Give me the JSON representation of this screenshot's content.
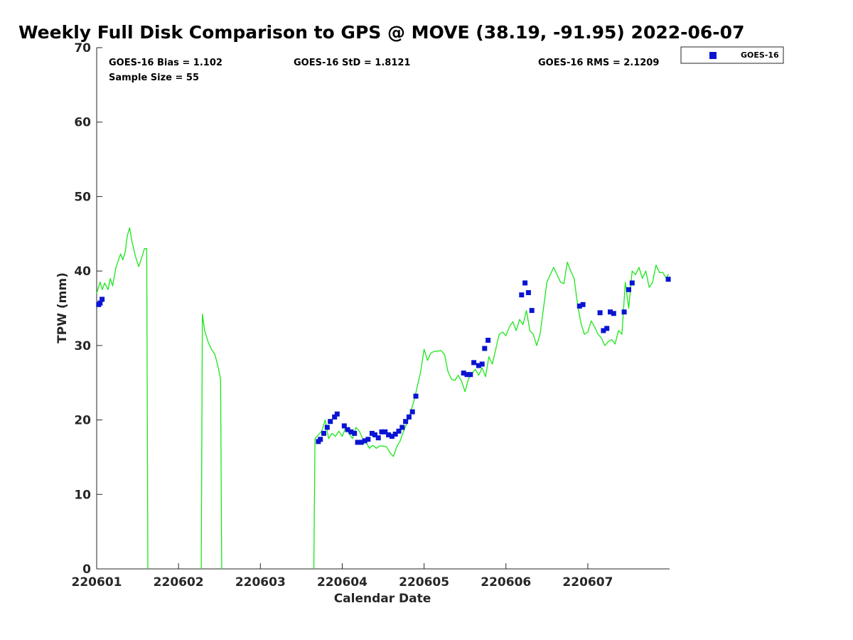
{
  "chart_data": {
    "type": "scatter",
    "title": "Weekly Full Disk Comparison to GPS @ MOVE (38.19, -91.95) 2022-06-07",
    "xlabel": "Calendar Date",
    "ylabel": "TPW (mm)",
    "xlim": [
      "2022-06-01",
      "2022-06-07 23:59"
    ],
    "ylim": [
      0,
      70
    ],
    "y_ticks": [
      0,
      10,
      20,
      30,
      40,
      50,
      60,
      70
    ],
    "x_ticks": [
      "220601",
      "220602",
      "220603",
      "220604",
      "220605",
      "220606",
      "220607"
    ],
    "stats": {
      "bias": "GOES-16 Bias = 1.102",
      "std": "GOES-16 StD = 1.8121",
      "rms": "GOES-16 RMS = 2.1209",
      "sample_size": "Sample Size = 55"
    },
    "legend": {
      "position": "outside-top-right",
      "entries": [
        "GOES-16"
      ]
    },
    "colors": {
      "goes": "#0a14d2",
      "gps": "#1be61b"
    },
    "series": [
      {
        "name": "GOES-16",
        "type": "scatter",
        "points": [
          [
            "2022-06-01 00:35",
            35.5
          ],
          [
            "2022-06-01 01:00",
            35.7
          ],
          [
            "2022-06-01 01:35",
            36.2
          ],
          [
            "2022-06-03 17:00",
            17.1
          ],
          [
            "2022-06-03 17:35",
            17.4
          ],
          [
            "2022-06-03 18:35",
            18.2
          ],
          [
            "2022-06-03 19:35",
            19.0
          ],
          [
            "2022-06-03 20:30",
            19.8
          ],
          [
            "2022-06-03 21:45",
            20.4
          ],
          [
            "2022-06-03 22:30",
            20.8
          ],
          [
            "2022-06-04 00:35",
            19.2
          ],
          [
            "2022-06-04 01:35",
            18.7
          ],
          [
            "2022-06-04 02:35",
            18.4
          ],
          [
            "2022-06-04 03:35",
            18.2
          ],
          [
            "2022-06-04 04:30",
            17.0
          ],
          [
            "2022-06-04 05:35",
            17.0
          ],
          [
            "2022-06-04 06:35",
            17.2
          ],
          [
            "2022-06-04 07:35",
            17.4
          ],
          [
            "2022-06-04 08:45",
            18.2
          ],
          [
            "2022-06-04 09:35",
            18.0
          ],
          [
            "2022-06-04 10:35",
            17.6
          ],
          [
            "2022-06-04 11:35",
            18.4
          ],
          [
            "2022-06-04 12:35",
            18.4
          ],
          [
            "2022-06-04 13:35",
            18.0
          ],
          [
            "2022-06-04 14:35",
            17.8
          ],
          [
            "2022-06-04 15:35",
            18.1
          ],
          [
            "2022-06-04 16:35",
            18.5
          ],
          [
            "2022-06-04 17:35",
            19.0
          ],
          [
            "2022-06-04 18:35",
            19.8
          ],
          [
            "2022-06-04 19:35",
            20.4
          ],
          [
            "2022-06-04 20:35",
            21.1
          ],
          [
            "2022-06-04 21:35",
            23.2
          ],
          [
            "2022-06-05 11:35",
            26.3
          ],
          [
            "2022-06-05 12:35",
            26.1
          ],
          [
            "2022-06-05 13:35",
            26.1
          ],
          [
            "2022-06-05 14:35",
            27.7
          ],
          [
            "2022-06-05 16:00",
            27.3
          ],
          [
            "2022-06-05 17:00",
            27.5
          ],
          [
            "2022-06-05 17:45",
            29.6
          ],
          [
            "2022-06-05 18:45",
            30.7
          ],
          [
            "2022-06-06 04:35",
            36.8
          ],
          [
            "2022-06-06 05:35",
            38.4
          ],
          [
            "2022-06-06 06:35",
            37.1
          ],
          [
            "2022-06-06 07:35",
            34.7
          ],
          [
            "2022-06-06 21:35",
            35.3
          ],
          [
            "2022-06-06 22:35",
            35.5
          ],
          [
            "2022-06-07 03:35",
            34.4
          ],
          [
            "2022-06-07 04:35",
            32.0
          ],
          [
            "2022-06-07 05:35",
            32.3
          ],
          [
            "2022-06-07 06:35",
            34.5
          ],
          [
            "2022-06-07 07:35",
            34.3
          ],
          [
            "2022-06-07 10:40",
            34.5
          ],
          [
            "2022-06-07 12:00",
            37.5
          ],
          [
            "2022-06-07 13:00",
            38.4
          ],
          [
            "2022-06-07 23:35",
            38.9
          ]
        ]
      },
      {
        "type": "line",
        "segments": [
          [
            [
              "2022-06-01 00:00",
              37.0
            ],
            [
              "2022-06-01 01:00",
              38.5
            ],
            [
              "2022-06-01 01:40",
              37.5
            ],
            [
              "2022-06-01 02:20",
              38.4
            ],
            [
              "2022-06-01 03:20",
              37.5
            ],
            [
              "2022-06-01 04:00",
              39.0
            ],
            [
              "2022-06-01 04:40",
              38.0
            ],
            [
              "2022-06-01 05:40",
              40.5
            ],
            [
              "2022-06-01 07:00",
              42.3
            ],
            [
              "2022-06-01 07:40",
              41.5
            ],
            [
              "2022-06-01 08:20",
              42.5
            ],
            [
              "2022-06-01 09:00",
              44.8
            ],
            [
              "2022-06-01 09:40",
              45.8
            ],
            [
              "2022-06-01 10:20",
              44.0
            ],
            [
              "2022-06-01 11:20",
              42.0
            ],
            [
              "2022-06-01 12:20",
              40.6
            ],
            [
              "2022-06-01 13:00",
              41.5
            ],
            [
              "2022-06-01 14:00",
              43.0
            ],
            [
              "2022-06-01 14:40",
              43.0
            ],
            [
              "2022-06-01 15:00",
              0.0
            ]
          ],
          [
            [
              "2022-06-02 06:40",
              0.0
            ],
            [
              "2022-06-02 07:00",
              34.2
            ],
            [
              "2022-06-02 07:40",
              32.0
            ],
            [
              "2022-06-02 08:40",
              30.5
            ],
            [
              "2022-06-02 09:40",
              29.5
            ],
            [
              "2022-06-02 10:40",
              28.8
            ],
            [
              "2022-06-02 11:40",
              27.0
            ],
            [
              "2022-06-02 12:20",
              25.5
            ],
            [
              "2022-06-02 12:40",
              0.0
            ]
          ],
          [
            [
              "2022-06-03 15:40",
              0.0
            ],
            [
              "2022-06-03 16:00",
              17.5
            ],
            [
              "2022-06-03 17:00",
              18.0
            ],
            [
              "2022-06-03 18:00",
              18.5
            ],
            [
              "2022-06-03 19:00",
              20.0
            ],
            [
              "2022-06-03 20:00",
              17.5
            ],
            [
              "2022-06-03 21:00",
              18.2
            ],
            [
              "2022-06-03 22:00",
              17.8
            ],
            [
              "2022-06-03 23:00",
              18.5
            ],
            [
              "2022-06-04 00:00",
              17.8
            ],
            [
              "2022-06-04 01:00",
              19.0
            ],
            [
              "2022-06-04 02:00",
              18.2
            ],
            [
              "2022-06-04 03:00",
              17.5
            ],
            [
              "2022-06-04 04:00",
              19.0
            ],
            [
              "2022-06-04 05:00",
              18.5
            ],
            [
              "2022-06-04 06:00",
              17.5
            ],
            [
              "2022-06-04 07:00",
              17.0
            ],
            [
              "2022-06-04 08:00",
              16.2
            ],
            [
              "2022-06-04 09:00",
              16.6
            ],
            [
              "2022-06-04 10:00",
              16.2
            ],
            [
              "2022-06-04 11:00",
              16.5
            ],
            [
              "2022-06-04 12:00",
              16.5
            ],
            [
              "2022-06-04 13:00",
              16.4
            ],
            [
              "2022-06-04 14:00",
              15.6
            ],
            [
              "2022-06-04 15:00",
              15.1
            ],
            [
              "2022-06-04 16:00",
              16.4
            ],
            [
              "2022-06-04 17:00",
              17.2
            ],
            [
              "2022-06-04 18:00",
              18.5
            ],
            [
              "2022-06-04 19:00",
              19.6
            ],
            [
              "2022-06-04 20:00",
              21.0
            ],
            [
              "2022-06-04 21:00",
              22.5
            ],
            [
              "2022-06-04 22:00",
              24.5
            ],
            [
              "2022-06-04 23:00",
              26.5
            ],
            [
              "2022-06-05 00:00",
              29.5
            ],
            [
              "2022-06-05 01:00",
              28.0
            ],
            [
              "2022-06-05 02:00",
              29.0
            ],
            [
              "2022-06-05 03:00",
              29.2
            ],
            [
              "2022-06-05 05:00",
              29.3
            ],
            [
              "2022-06-05 06:00",
              28.8
            ],
            [
              "2022-06-05 07:00",
              26.5
            ],
            [
              "2022-06-05 08:00",
              25.5
            ],
            [
              "2022-06-05 09:00",
              25.3
            ],
            [
              "2022-06-05 10:00",
              26.0
            ],
            [
              "2022-06-05 11:00",
              25.2
            ],
            [
              "2022-06-05 12:00",
              23.8
            ],
            [
              "2022-06-05 13:00",
              25.5
            ],
            [
              "2022-06-05 14:00",
              26.2
            ],
            [
              "2022-06-05 15:00",
              26.8
            ],
            [
              "2022-06-05 16:00",
              26.0
            ],
            [
              "2022-06-05 17:00",
              27.0
            ],
            [
              "2022-06-05 18:00",
              25.8
            ],
            [
              "2022-06-05 19:00",
              28.5
            ],
            [
              "2022-06-05 20:00",
              27.5
            ],
            [
              "2022-06-05 21:00",
              29.5
            ],
            [
              "2022-06-05 22:00",
              31.5
            ],
            [
              "2022-06-05 23:00",
              31.8
            ],
            [
              "2022-06-06 00:00",
              31.3
            ],
            [
              "2022-06-06 01:00",
              32.5
            ],
            [
              "2022-06-06 02:00",
              33.2
            ],
            [
              "2022-06-06 03:00",
              32.0
            ],
            [
              "2022-06-06 04:00",
              33.5
            ],
            [
              "2022-06-06 05:00",
              32.8
            ],
            [
              "2022-06-06 06:00",
              34.7
            ],
            [
              "2022-06-06 07:00",
              32.0
            ],
            [
              "2022-06-06 08:00",
              31.5
            ],
            [
              "2022-06-06 09:00",
              30.0
            ],
            [
              "2022-06-06 10:00",
              31.5
            ],
            [
              "2022-06-06 11:00",
              35.0
            ],
            [
              "2022-06-06 12:00",
              38.5
            ],
            [
              "2022-06-06 13:00",
              39.5
            ],
            [
              "2022-06-06 14:00",
              40.5
            ],
            [
              "2022-06-06 15:00",
              39.5
            ],
            [
              "2022-06-06 16:00",
              38.5
            ],
            [
              "2022-06-06 17:00",
              38.3
            ],
            [
              "2022-06-06 18:00",
              41.2
            ],
            [
              "2022-06-06 19:00",
              40.0
            ],
            [
              "2022-06-06 20:00",
              39.0
            ],
            [
              "2022-06-06 21:00",
              35.5
            ],
            [
              "2022-06-06 22:00",
              33.0
            ],
            [
              "2022-06-06 23:00",
              31.5
            ],
            [
              "2022-06-07 00:00",
              31.8
            ],
            [
              "2022-06-07 01:00",
              33.3
            ],
            [
              "2022-06-07 02:00",
              32.5
            ],
            [
              "2022-06-07 03:00",
              31.5
            ],
            [
              "2022-06-07 04:00",
              31.0
            ],
            [
              "2022-06-07 05:00",
              30.0
            ],
            [
              "2022-06-07 06:00",
              30.5
            ],
            [
              "2022-06-07 07:00",
              30.8
            ],
            [
              "2022-06-07 08:00",
              30.2
            ],
            [
              "2022-06-07 09:00",
              32.0
            ],
            [
              "2022-06-07 10:00",
              31.5
            ],
            [
              "2022-06-07 11:00",
              38.5
            ],
            [
              "2022-06-07 12:00",
              35.0
            ],
            [
              "2022-06-07 13:00",
              40.0
            ],
            [
              "2022-06-07 14:00",
              39.5
            ],
            [
              "2022-06-07 15:00",
              40.5
            ],
            [
              "2022-06-07 16:00",
              39.0
            ],
            [
              "2022-06-07 17:00",
              40.0
            ],
            [
              "2022-06-07 18:00",
              37.8
            ],
            [
              "2022-06-07 19:00",
              38.5
            ],
            [
              "2022-06-07 20:00",
              40.8
            ],
            [
              "2022-06-07 21:00",
              39.8
            ],
            [
              "2022-06-07 22:00",
              39.8
            ],
            [
              "2022-06-07 23:00",
              39.0
            ],
            [
              "2022-06-07 23:40",
              39.6
            ]
          ]
        ]
      }
    ]
  }
}
